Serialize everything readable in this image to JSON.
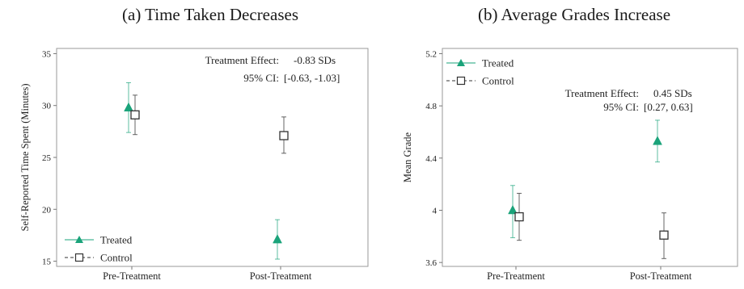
{
  "colors": {
    "treated": "#1aa37a",
    "control": "#333333",
    "frame": "#999999"
  },
  "chart_data": [
    {
      "type": "scatter",
      "title": "(a) Time Taken Decreases",
      "xlabel": "",
      "ylabel": "Self-Reported Time Spent (Minutes)",
      "categories": [
        "Pre-Treatment",
        "Post-Treatment"
      ],
      "ylim": [
        14.5,
        35.5
      ],
      "yticks": [
        15,
        20,
        25,
        30,
        35
      ],
      "grid": false,
      "legend_position": "bottom-left",
      "series": [
        {
          "name": "Treated",
          "marker": "triangle",
          "values": [
            29.8,
            17.1
          ],
          "ci_low": [
            27.4,
            15.2
          ],
          "ci_high": [
            32.2,
            19.0
          ]
        },
        {
          "name": "Control",
          "marker": "open-square",
          "values": [
            29.1,
            27.1
          ],
          "ci_low": [
            27.2,
            25.4
          ],
          "ci_high": [
            31.0,
            28.9
          ]
        }
      ],
      "annotation": {
        "effect_label": "Treatment Effect:",
        "effect_value": "-0.83 SDs",
        "ci_label": "95% CI:",
        "ci_value": "[-0.63, -1.03]"
      }
    },
    {
      "type": "scatter",
      "title": "(b) Average Grades Increase",
      "xlabel": "",
      "ylabel": "Mean Grade",
      "categories": [
        "Pre-Treatment",
        "Post-Treatment"
      ],
      "ylim": [
        3.57,
        5.24
      ],
      "yticks": [
        3.6,
        4.0,
        4.4,
        4.8,
        5.2
      ],
      "ytick_labels": [
        "3.6",
        "4",
        "4.4",
        "4.8",
        "5.2"
      ],
      "grid": false,
      "legend_position": "top-left",
      "series": [
        {
          "name": "Treated",
          "marker": "triangle",
          "values": [
            4.0,
            4.53
          ],
          "ci_low": [
            3.79,
            4.37
          ],
          "ci_high": [
            4.19,
            4.69
          ]
        },
        {
          "name": "Control",
          "marker": "open-square",
          "values": [
            3.95,
            3.81
          ],
          "ci_low": [
            3.77,
            3.63
          ],
          "ci_high": [
            4.13,
            3.98
          ]
        }
      ],
      "annotation": {
        "effect_label": "Treatment Effect:",
        "effect_value": "0.45 SDs",
        "ci_label": "95% CI:",
        "ci_value": "[0.27, 0.63]"
      }
    }
  ]
}
